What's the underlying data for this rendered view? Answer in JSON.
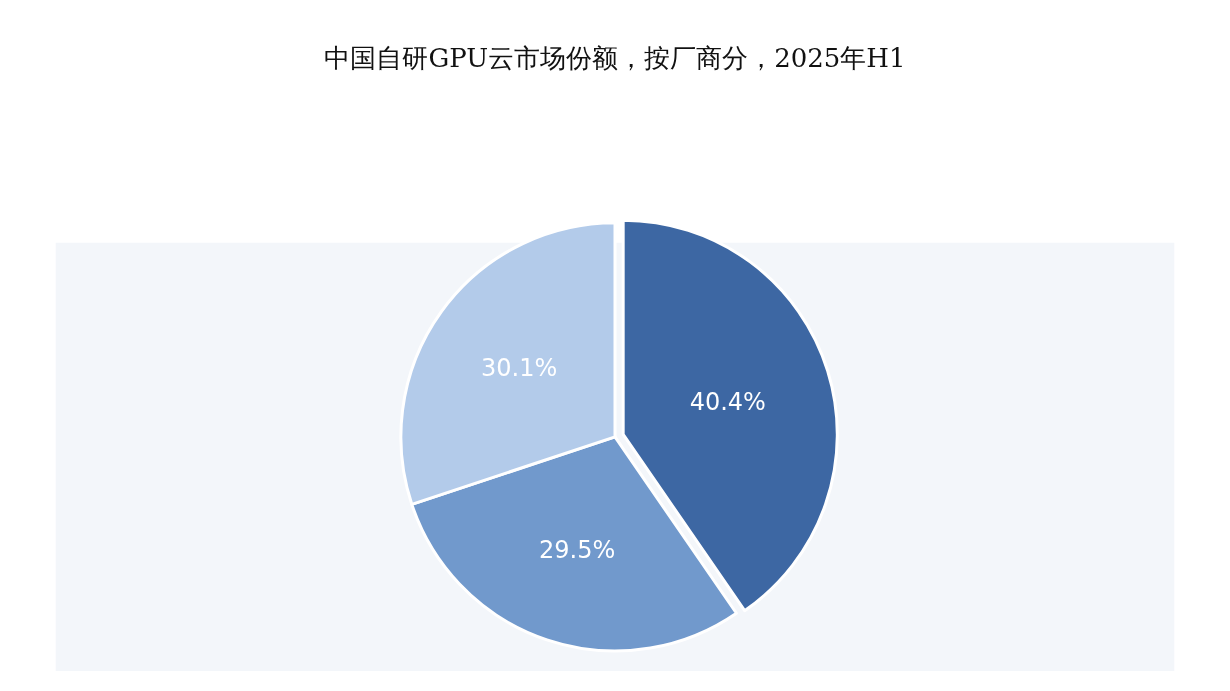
{
  "chart_data": {
    "type": "pie",
    "title": "中国自研GPU云市场份额，按厂商分，2025年H1",
    "categories": [
      null,
      null,
      null
    ],
    "values": [
      40.4,
      29.5,
      30.1
    ],
    "value_labels": [
      "40.4%",
      "29.5%",
      "30.1%"
    ],
    "colors": [
      "#3d67a3",
      "#7199cc",
      "#b3cbea"
    ],
    "legend": false
  }
}
